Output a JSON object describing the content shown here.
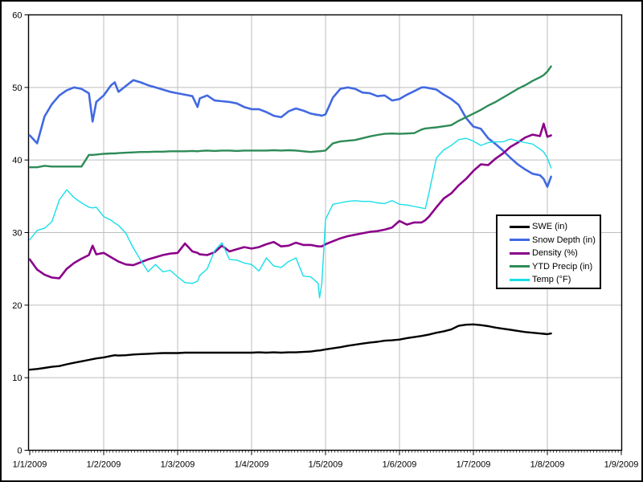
{
  "window": {
    "title": "Snow telemetry line chart"
  },
  "colors": {
    "background": "#ffffff",
    "frame_border": "#000000",
    "plot_border": "#000000",
    "gridline": "#bebebe",
    "tick_label": "#000000"
  },
  "legend": {
    "items": [
      {
        "label": "SWE (in)",
        "color": "#000000"
      },
      {
        "label": "Snow Depth (in)",
        "color": "#4169e1"
      },
      {
        "label": "Density (%)",
        "color": "#8b008b"
      },
      {
        "label": "YTD Precip (in)",
        "color": "#2e8b57"
      },
      {
        "label": "Temp (°F)",
        "color": "#18dfe8"
      }
    ]
  },
  "chart_data": {
    "type": "line",
    "title": "",
    "xlabel": "",
    "ylabel": "",
    "grid": true,
    "legend_position": "middle-right",
    "ylim": [
      0,
      60
    ],
    "y_ticks": [
      "0",
      "10",
      "20",
      "30",
      "40",
      "50",
      "60"
    ],
    "x_tick_labels": [
      "1/1/2009",
      "1/2/2009",
      "1/3/2009",
      "1/4/2009",
      "1/5/2009",
      "1/6/2009",
      "1/7/2009",
      "1/8/2009",
      "1/9/2009"
    ],
    "x_unit": "days since 1/1/2009, hourly data",
    "x": [
      0,
      0.1,
      0.2,
      0.3,
      0.4,
      0.5,
      0.6,
      0.7,
      0.8,
      0.85,
      0.9,
      1,
      1.1,
      1.15,
      1.2,
      1.3,
      1.4,
      1.5,
      1.6,
      1.7,
      1.8,
      1.9,
      2,
      2.1,
      2.2,
      2.27,
      2.3,
      2.4,
      2.5,
      2.6,
      2.7,
      2.8,
      2.9,
      3,
      3.1,
      3.2,
      3.3,
      3.4,
      3.5,
      3.6,
      3.7,
      3.8,
      3.9,
      3.92,
      3.95,
      4,
      4.1,
      4.2,
      4.3,
      4.4,
      4.5,
      4.6,
      4.7,
      4.8,
      4.9,
      5,
      5.1,
      5.2,
      5.3,
      5.35,
      5.4,
      5.5,
      5.6,
      5.7,
      5.8,
      5.9,
      6,
      6.1,
      6.2,
      6.3,
      6.4,
      6.5,
      6.6,
      6.7,
      6.8,
      6.9,
      6.95,
      7,
      7.05
    ],
    "series": [
      {
        "name": "SWE (in)",
        "color": "#000000",
        "width": 2.4,
        "values": [
          11.1,
          11.2,
          11.35,
          11.5,
          11.6,
          11.85,
          12.05,
          12.25,
          12.45,
          12.55,
          12.65,
          12.8,
          13,
          13.1,
          13.05,
          13.1,
          13.2,
          13.25,
          13.3,
          13.35,
          13.4,
          13.4,
          13.4,
          13.45,
          13.45,
          13.45,
          13.45,
          13.45,
          13.45,
          13.45,
          13.45,
          13.45,
          13.45,
          13.45,
          13.5,
          13.45,
          13.5,
          13.45,
          13.5,
          13.5,
          13.55,
          13.6,
          13.75,
          13.75,
          13.8,
          13.9,
          14.05,
          14.2,
          14.4,
          14.55,
          14.7,
          14.85,
          14.95,
          15.1,
          15.15,
          15.25,
          15.45,
          15.6,
          15.75,
          15.85,
          15.95,
          16.2,
          16.4,
          16.65,
          17.15,
          17.3,
          17.35,
          17.25,
          17.1,
          16.9,
          16.75,
          16.6,
          16.45,
          16.3,
          16.2,
          16.1,
          16.05,
          16,
          16.1
        ]
      },
      {
        "name": "Snow Depth (in)",
        "color": "#4169e1",
        "width": 2.6,
        "values": [
          43.4,
          42.3,
          46,
          47.7,
          48.9,
          49.6,
          50,
          49.8,
          49.2,
          45.3,
          48,
          48.9,
          50.3,
          50.7,
          49.4,
          50.2,
          51,
          50.7,
          50.3,
          50,
          49.7,
          49.4,
          49.2,
          49,
          48.8,
          47.3,
          48.5,
          48.9,
          48.2,
          48.1,
          48,
          47.8,
          47.3,
          47,
          47,
          46.6,
          46.1,
          45.9,
          46.7,
          47.1,
          46.8,
          46.4,
          46.2,
          46.2,
          46.1,
          46.3,
          48.6,
          49.8,
          50,
          49.8,
          49.3,
          49.2,
          48.8,
          48.9,
          48.2,
          48.4,
          49,
          49.5,
          50,
          50,
          49.9,
          49.7,
          49,
          48.4,
          47.6,
          45.8,
          44.6,
          44.3,
          43,
          42.2,
          41.3,
          40.3,
          39.4,
          38.7,
          38.1,
          37.9,
          37.4,
          36.3,
          37.7
        ]
      },
      {
        "name": "Density (%)",
        "color": "#8b008b",
        "width": 2.6,
        "values": [
          26.3,
          24.9,
          24.2,
          23.8,
          23.7,
          25,
          25.8,
          26.4,
          26.9,
          28.2,
          27,
          27.2,
          26.6,
          26.3,
          26,
          25.6,
          25.5,
          25.9,
          26.3,
          26.6,
          26.9,
          27.1,
          27.2,
          28.5,
          27.4,
          27.2,
          27,
          26.9,
          27.3,
          28.2,
          27.4,
          27.7,
          28,
          27.8,
          28,
          28.4,
          28.7,
          28.1,
          28.2,
          28.6,
          28.3,
          28.3,
          28.1,
          28.1,
          28.1,
          28.4,
          28.8,
          29.2,
          29.5,
          29.7,
          29.9,
          30.1,
          30.2,
          30.4,
          30.7,
          31.6,
          31.1,
          31.4,
          31.4,
          31.7,
          32.2,
          33.5,
          34.7,
          35.4,
          36.5,
          37.4,
          38.5,
          39.4,
          39.3,
          40.2,
          40.9,
          41.8,
          42.4,
          43.1,
          43.5,
          43.3,
          45,
          43.2,
          43.4
        ]
      },
      {
        "name": "YTD Precip (in)",
        "color": "#2e8b57",
        "width": 2.4,
        "values": [
          39,
          39,
          39.2,
          39.1,
          39.1,
          39.1,
          39.1,
          39.1,
          40.7,
          40.7,
          40.75,
          40.85,
          40.9,
          40.9,
          40.95,
          41,
          41.05,
          41.1,
          41.1,
          41.15,
          41.15,
          41.2,
          41.2,
          41.2,
          41.25,
          41.2,
          41.25,
          41.3,
          41.25,
          41.3,
          41.3,
          41.25,
          41.3,
          41.3,
          41.3,
          41.3,
          41.35,
          41.3,
          41.35,
          41.3,
          41.2,
          41.1,
          41.2,
          41.2,
          41.25,
          41.3,
          42.3,
          42.55,
          42.65,
          42.75,
          43,
          43.25,
          43.45,
          43.6,
          43.65,
          43.6,
          43.65,
          43.7,
          44.2,
          44.35,
          44.4,
          44.5,
          44.65,
          44.8,
          45.4,
          45.9,
          46.4,
          46.9,
          47.5,
          48,
          48.6,
          49.2,
          49.8,
          50.3,
          50.9,
          51.4,
          51.7,
          52.2,
          52.9
        ]
      },
      {
        "name": "Temp (°F)",
        "color": "#18dfe8",
        "width": 1.4,
        "values": [
          29,
          30.3,
          30.6,
          31.5,
          34.5,
          35.9,
          34.8,
          34.1,
          33.5,
          33.4,
          33.5,
          32.2,
          31.7,
          31.3,
          31,
          29.9,
          27.9,
          26.2,
          24.6,
          25.6,
          24.6,
          24.8,
          23.9,
          23.1,
          23,
          23.3,
          24.1,
          25,
          27.5,
          28.6,
          26.3,
          26.2,
          25.8,
          25.6,
          24.7,
          26.5,
          25.4,
          25.2,
          26,
          26.5,
          24,
          23.9,
          23,
          21,
          23,
          31.8,
          33.9,
          34.1,
          34.3,
          34.4,
          34.3,
          34.3,
          34.1,
          34,
          34.4,
          33.9,
          33.8,
          33.6,
          33.4,
          33.3,
          35.5,
          40.3,
          41.4,
          42,
          42.8,
          43,
          42.6,
          42,
          42.4,
          42.5,
          42.5,
          42.9,
          42.6,
          42.4,
          42.2,
          41.5,
          41.1,
          40.3,
          38.9
        ]
      }
    ]
  }
}
